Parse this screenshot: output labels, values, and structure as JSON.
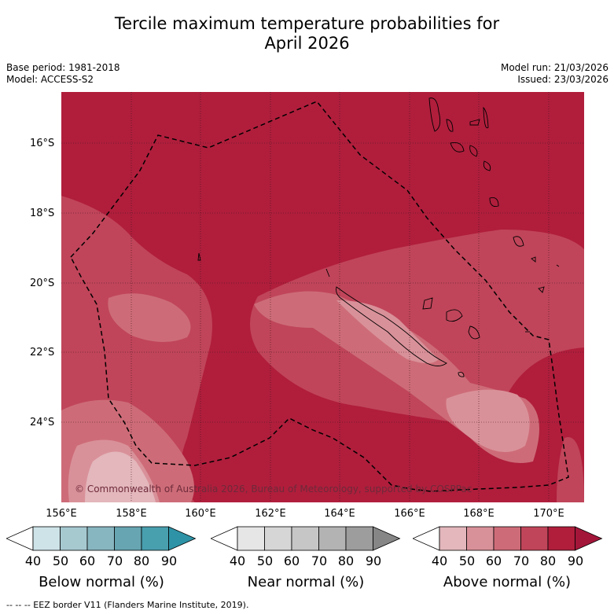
{
  "title": {
    "line1": "Tercile maximum temperature probabilities for",
    "line2": "April 2026"
  },
  "left_meta": {
    "base_period": "Base period: 1981-2018",
    "model": "Model: ACCESS-S2"
  },
  "right_meta": {
    "model_run": "Model run: 21/03/2026",
    "issued": "Issued: 23/03/2026"
  },
  "map": {
    "lat_labels": [
      "16°S",
      "18°S",
      "20°S",
      "22°S",
      "24°S"
    ],
    "lon_labels": [
      "156°E",
      "158°E",
      "160°E",
      "162°E",
      "164°E",
      "166°E",
      "168°E",
      "170°E"
    ],
    "copyright": "© Commonwealth of Australia 2026, Bureau of Meteorology, supported by COSPPac",
    "colors": {
      "above_80": "#b01e3c",
      "above_70": "#c0455a",
      "above_60": "#cd6c78",
      "above_50": "#d99199",
      "above_40": "#e3b7bc"
    }
  },
  "colorbars": [
    {
      "label": "Below normal (%)",
      "ticks": [
        "40",
        "50",
        "60",
        "70",
        "80",
        "90"
      ],
      "colors": [
        "#ffffff",
        "#cde3e8",
        "#a6c9d0",
        "#88b6c0",
        "#67a5b2",
        "#489fae",
        "#2e93a6"
      ]
    },
    {
      "label": "Near normal (%)",
      "ticks": [
        "40",
        "50",
        "60",
        "70",
        "80",
        "90"
      ],
      "colors": [
        "#ffffff",
        "#e6e6e6",
        "#d6d6d6",
        "#c6c6c6",
        "#b3b3b3",
        "#9d9d9d",
        "#868686"
      ]
    },
    {
      "label": "Above normal (%)",
      "ticks": [
        "40",
        "50",
        "60",
        "70",
        "80",
        "90"
      ],
      "colors": [
        "#ffffff",
        "#e3b7bc",
        "#d99199",
        "#cd6c78",
        "#c0455a",
        "#b01e3c",
        "#a3163a"
      ]
    }
  ],
  "footnote": "-- -- -- EEZ border V11 (Flanders Marine Institute, 2019)."
}
